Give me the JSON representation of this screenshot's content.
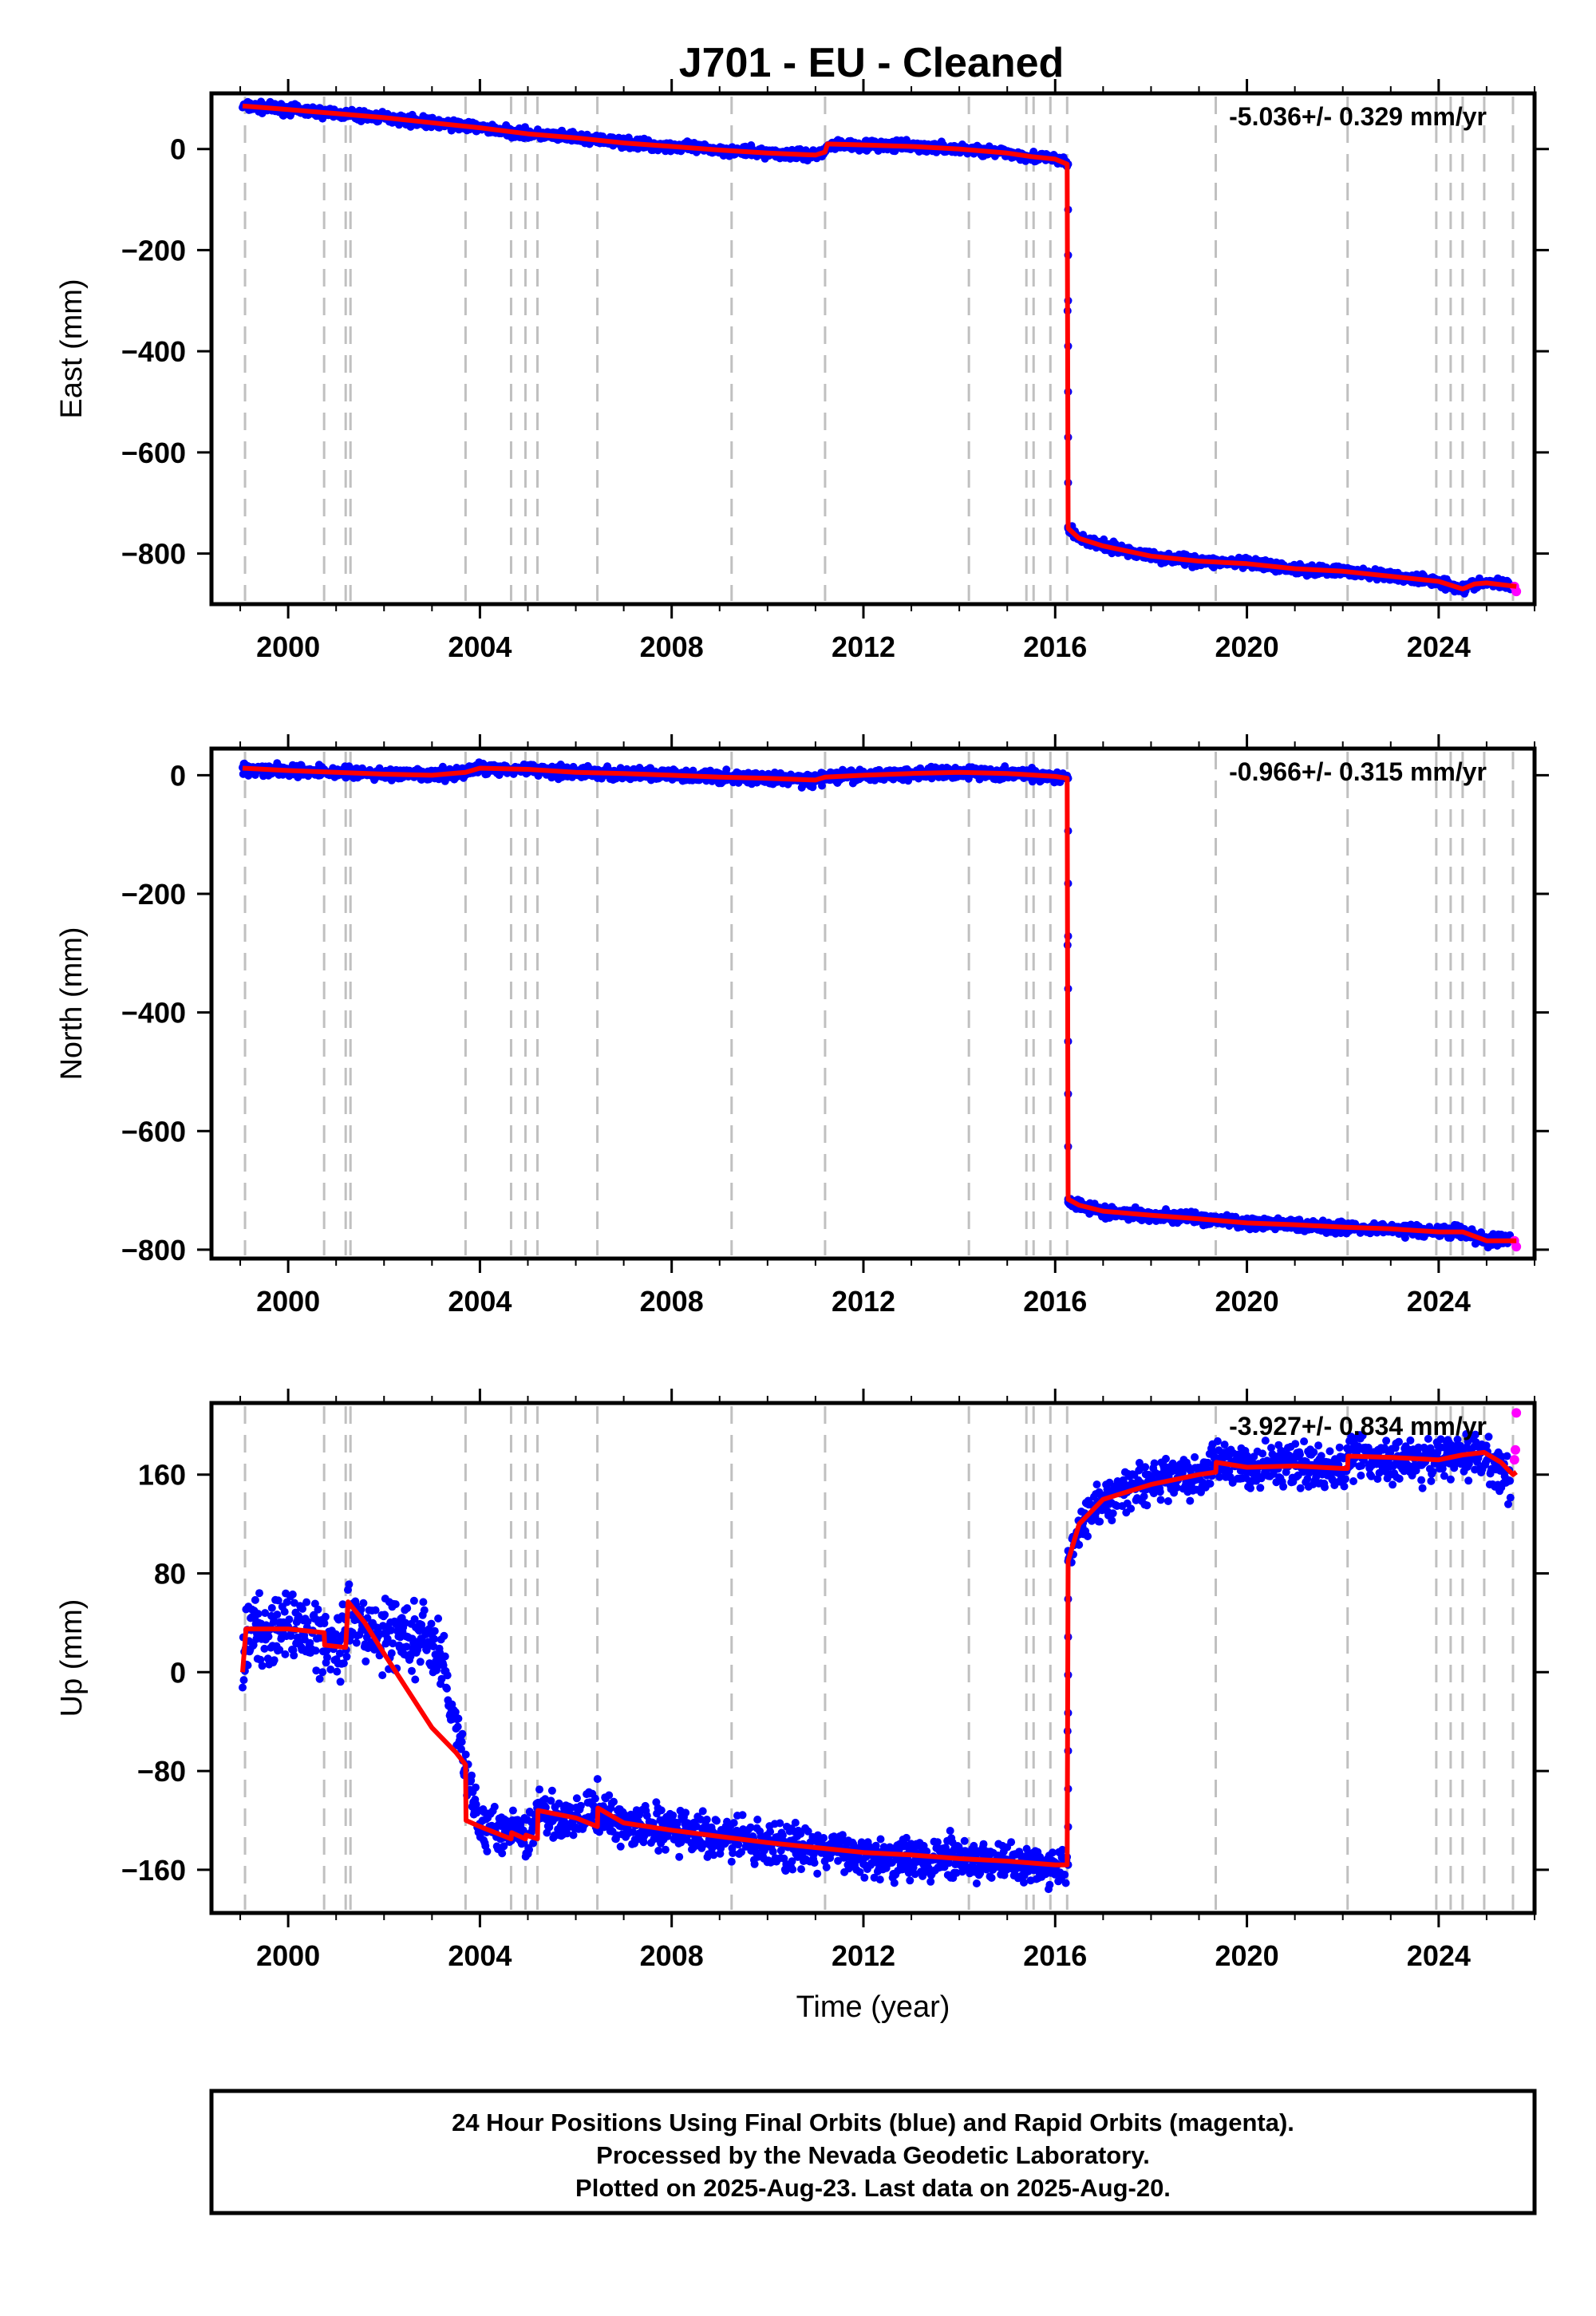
{
  "title": "J701  - EU - Cleaned",
  "footer": {
    "line1": "24 Hour Positions Using Final Orbits (blue) and Rapid Orbits (magenta).",
    "line2": "Processed by the Nevada Geodetic Laboratory.",
    "line3": "Plotted on 2025-Aug-23. Last data on 2025-Aug-20."
  },
  "colors": {
    "final": "#0000ff",
    "rapid": "#ff00ff",
    "model": "#ff0000",
    "offsets": "#c0c0c0"
  },
  "chart_data": [
    {
      "type": "scatter",
      "ylabel": "East (mm)",
      "xlabel": "",
      "xlim": [
        1998.4,
        2026.0
      ],
      "ylim": [
        -900,
        110
      ],
      "xticks": [
        2000,
        2004,
        2008,
        2012,
        2016,
        2020,
        2024
      ],
      "yticks": [
        0,
        -200,
        -400,
        -600,
        -800
      ],
      "rate_label": "-5.036+/- 0.329 mm/yr",
      "offset_epochs": [
        1999.1,
        2000.75,
        2001.2,
        2001.3,
        2003.7,
        2004.65,
        2004.95,
        2005.2,
        2006.45,
        2009.25,
        2011.2,
        2014.2,
        2015.4,
        2015.55,
        2015.9,
        2016.25,
        2019.35,
        2022.1,
        2023.95,
        2024.25,
        2024.5,
        2024.95,
        2025.55
      ],
      "series": [
        {
          "name": "Final Orbits",
          "x": [
            1999.05,
            2000.0,
            2001.0,
            2002.0,
            2003.0,
            2004.0,
            2005.0,
            2006.0,
            2007.0,
            2008.0,
            2009.0,
            2010.0,
            2011.0,
            2011.2,
            2011.25,
            2012.0,
            2013.0,
            2014.0,
            2015.0,
            2015.5,
            2016.0,
            2016.25,
            2016.27,
            2016.5,
            2017.0,
            2018.0,
            2019.0,
            2020.0,
            2021.0,
            2022.0,
            2023.0,
            2024.0,
            2024.5,
            2024.75,
            2025.0,
            2025.5
          ],
          "y": [
            85,
            78,
            70,
            62,
            52,
            42,
            30,
            22,
            12,
            5,
            -2,
            -8,
            -12,
            -6,
            10,
            8,
            5,
            0,
            -8,
            -15,
            -20,
            -30,
            -750,
            -770,
            -785,
            -805,
            -815,
            -820,
            -830,
            -835,
            -845,
            -855,
            -870,
            -860,
            -858,
            -862
          ]
        },
        {
          "name": "Rapid Orbits",
          "x": [
            2025.58,
            2025.62
          ],
          "y": [
            -865,
            -875
          ]
        },
        {
          "name": "Model",
          "x": [
            1999.05,
            2000.0,
            2001.0,
            2002.0,
            2003.0,
            2004.0,
            2005.0,
            2006.0,
            2007.0,
            2008.0,
            2009.0,
            2010.0,
            2011.0,
            2011.2,
            2011.25,
            2012.0,
            2013.0,
            2014.0,
            2015.0,
            2015.5,
            2016.0,
            2016.25,
            2016.27,
            2016.5,
            2017.0,
            2018.0,
            2019.0,
            2020.0,
            2021.0,
            2022.0,
            2023.0,
            2024.0,
            2024.5,
            2024.75,
            2025.0,
            2025.62
          ],
          "y": [
            85,
            78,
            70,
            62,
            52,
            42,
            30,
            22,
            12,
            5,
            -2,
            -8,
            -12,
            -6,
            10,
            8,
            5,
            0,
            -8,
            -15,
            -20,
            -30,
            -750,
            -770,
            -785,
            -805,
            -815,
            -820,
            -830,
            -835,
            -845,
            -855,
            -870,
            -860,
            -858,
            -865
          ]
        }
      ]
    },
    {
      "type": "scatter",
      "ylabel": "North (mm)",
      "xlabel": "",
      "xlim": [
        1998.4,
        2026.0
      ],
      "ylim": [
        -815,
        45
      ],
      "xticks": [
        2000,
        2004,
        2008,
        2012,
        2016,
        2020,
        2024
      ],
      "yticks": [
        0,
        -200,
        -400,
        -600,
        -800
      ],
      "rate_label": "-0.966+/- 0.315 mm/yr",
      "offset_epochs": [
        1999.1,
        2000.75,
        2001.2,
        2001.3,
        2003.7,
        2004.65,
        2004.95,
        2005.2,
        2006.45,
        2009.25,
        2011.2,
        2014.2,
        2015.4,
        2015.55,
        2015.9,
        2016.25,
        2019.35,
        2022.1,
        2023.95,
        2024.25,
        2024.5,
        2024.95,
        2025.55
      ],
      "series": [
        {
          "name": "Final Orbits",
          "x": [
            1999.05,
            2000.0,
            2001.0,
            2002.0,
            2003.0,
            2003.7,
            2004.0,
            2005.0,
            2006.0,
            2007.0,
            2008.0,
            2009.0,
            2010.0,
            2011.0,
            2011.2,
            2012.0,
            2013.0,
            2014.0,
            2015.0,
            2016.0,
            2016.25,
            2016.27,
            2016.5,
            2017.0,
            2018.0,
            2019.0,
            2020.0,
            2021.0,
            2022.0,
            2023.0,
            2024.0,
            2024.5,
            2025.0,
            2025.5
          ],
          "y": [
            12,
            8,
            5,
            2,
            0,
            5,
            12,
            10,
            5,
            3,
            0,
            -3,
            -5,
            -8,
            -3,
            0,
            3,
            5,
            3,
            -2,
            -5,
            -715,
            -725,
            -735,
            -742,
            -748,
            -755,
            -758,
            -762,
            -765,
            -770,
            -770,
            -785,
            -782
          ]
        },
        {
          "name": "Rapid Orbits",
          "x": [
            2025.58,
            2025.62
          ],
          "y": [
            -785,
            -795
          ]
        },
        {
          "name": "Model",
          "x": [
            1999.05,
            2000.0,
            2001.0,
            2002.0,
            2003.0,
            2003.7,
            2004.0,
            2005.0,
            2006.0,
            2007.0,
            2008.0,
            2009.0,
            2010.0,
            2011.0,
            2011.2,
            2012.0,
            2013.0,
            2014.0,
            2015.0,
            2016.0,
            2016.25,
            2016.27,
            2016.5,
            2017.0,
            2018.0,
            2019.0,
            2020.0,
            2021.0,
            2022.0,
            2023.0,
            2024.0,
            2024.5,
            2025.0,
            2025.62
          ],
          "y": [
            12,
            8,
            5,
            2,
            0,
            5,
            12,
            10,
            5,
            3,
            0,
            -3,
            -5,
            -8,
            -3,
            0,
            3,
            5,
            3,
            -2,
            -5,
            -715,
            -725,
            -735,
            -742,
            -748,
            -755,
            -758,
            -762,
            -765,
            -770,
            -770,
            -785,
            -785
          ]
        }
      ]
    },
    {
      "type": "scatter",
      "ylabel": "Up (mm)",
      "xlabel": "Time (year)",
      "xlim": [
        1998.4,
        2026.0
      ],
      "ylim": [
        -195,
        218
      ],
      "xticks": [
        2000,
        2004,
        2008,
        2012,
        2016,
        2020,
        2024
      ],
      "yticks": [
        160,
        80,
        0,
        -80,
        -160
      ],
      "rate_label": "-3.927+/- 0.834 mm/yr",
      "offset_epochs": [
        1999.1,
        2000.75,
        2001.2,
        2001.3,
        2003.7,
        2004.65,
        2004.95,
        2005.2,
        2006.45,
        2009.25,
        2011.2,
        2014.2,
        2015.4,
        2015.55,
        2015.9,
        2016.25,
        2019.35,
        2022.1,
        2023.95,
        2024.25,
        2024.5,
        2024.95,
        2025.55
      ],
      "series": [
        {
          "name": "Final Orbits",
          "x": [
            1999.05,
            1999.2,
            2000.0,
            2000.7,
            2001.0,
            2001.3,
            2001.5,
            2002.0,
            2002.5,
            2002.9,
            2003.2,
            2004.0,
            2004.7,
            2004.95,
            2005.2,
            2006.0,
            2006.45,
            2007.0,
            2008.0,
            2009.0,
            2010.0,
            2011.0,
            2012.0,
            2013.0,
            2014.0,
            2015.0,
            2016.0,
            2016.25,
            2016.27,
            2016.5,
            2017.0,
            2018.0,
            2019.0,
            2019.35,
            2020.0,
            2021.0,
            2022.0,
            2022.1,
            2023.0,
            2024.0,
            2024.5,
            2024.95,
            2025.3,
            2025.5
          ],
          "y": [
            0,
            35,
            35,
            30,
            20,
            50,
            35,
            30,
            25,
            30,
            5,
            -125,
            -130,
            -135,
            -112,
            -122,
            -110,
            -125,
            -128,
            -133,
            -140,
            -143,
            -148,
            -150,
            -152,
            -155,
            -156,
            -156,
            90,
            120,
            140,
            155,
            160,
            170,
            165,
            168,
            165,
            175,
            172,
            172,
            178,
            175,
            160,
            150
          ]
        },
        {
          "name": "Rapid Orbits",
          "x": [
            2025.58,
            2025.6,
            2025.62
          ],
          "y": [
            172,
            180,
            210
          ]
        },
        {
          "name": "Model",
          "x": [
            1999.05,
            1999.12,
            2000.0,
            2000.75,
            2000.76,
            2001.2,
            2001.25,
            2001.6,
            2002.0,
            2002.5,
            2003.0,
            2003.5,
            2003.7,
            2003.71,
            2004.0,
            2004.65,
            2004.66,
            2004.95,
            2004.96,
            2005.2,
            2005.21,
            2006.0,
            2006.45,
            2006.46,
            2007.0,
            2008.0,
            2009.0,
            2010.0,
            2011.0,
            2012.0,
            2013.0,
            2014.0,
            2015.0,
            2016.0,
            2016.25,
            2016.27,
            2016.5,
            2017.0,
            2018.0,
            2019.0,
            2019.35,
            2019.36,
            2020.0,
            2021.0,
            2022.0,
            2022.1,
            2022.11,
            2023.0,
            2024.0,
            2024.5,
            2024.95,
            2025.3,
            2025.55,
            2025.62
          ],
          "y": [
            0,
            35,
            35,
            32,
            22,
            20,
            57,
            40,
            15,
            -15,
            -45,
            -65,
            -75,
            -120,
            -125,
            -135,
            -130,
            -135,
            -132,
            -135,
            -112,
            -118,
            -125,
            -110,
            -122,
            -128,
            -133,
            -138,
            -142,
            -146,
            -148,
            -151,
            -153,
            -156,
            -156,
            90,
            120,
            140,
            152,
            160,
            162,
            170,
            166,
            167,
            165,
            165,
            175,
            174,
            172,
            176,
            178,
            170,
            160,
            162
          ]
        }
      ]
    }
  ]
}
